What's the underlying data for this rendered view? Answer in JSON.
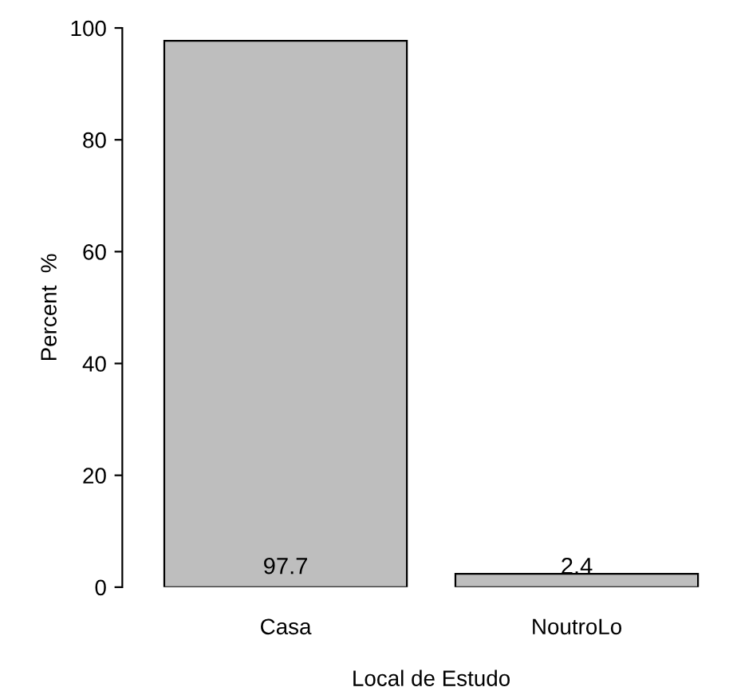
{
  "chart_data": {
    "type": "bar",
    "xlabel": "Local de Estudo",
    "ylabel": "Percent  %",
    "categories": [
      "Casa",
      "NoutroLo"
    ],
    "values": [
      97.7,
      2.4
    ],
    "color": "#bebebe",
    "ylim": [
      0,
      100
    ],
    "yticks": [
      0,
      20,
      40,
      60,
      80,
      100
    ],
    "grid": false,
    "data_labels": true
  }
}
